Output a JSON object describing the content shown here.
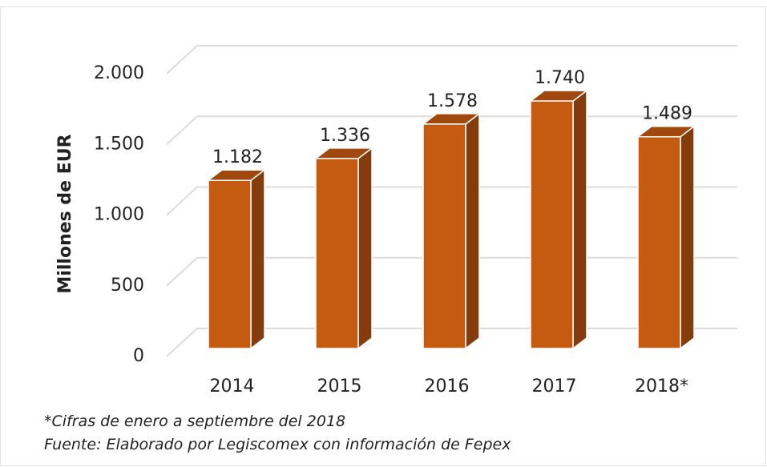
{
  "chart_data": {
    "type": "bar3d",
    "y_label": "Millones de EUR",
    "categories": [
      "2014",
      "2015",
      "2016",
      "2017",
      "2018*"
    ],
    "values": [
      1182,
      1336,
      1578,
      1740,
      1489
    ],
    "value_labels": [
      "1.182",
      "1.336",
      "1.578",
      "1.740",
      "1.489"
    ],
    "color": "#c55a11",
    "ylim": [
      0,
      2000
    ],
    "yticks": [
      0,
      {
        "value": 500,
        "label": "500"
      },
      {
        "value": 1000,
        "label": "1.000"
      },
      {
        "value": 1500,
        "label": "1.500"
      },
      {
        "value": 2000,
        "label": "2.000"
      }
    ],
    "grid": true,
    "annotations": [
      "*Cifras de enero a septiembre del 2018",
      "Fuente: Elaborado por Legiscomex con información de Fepex"
    ]
  }
}
